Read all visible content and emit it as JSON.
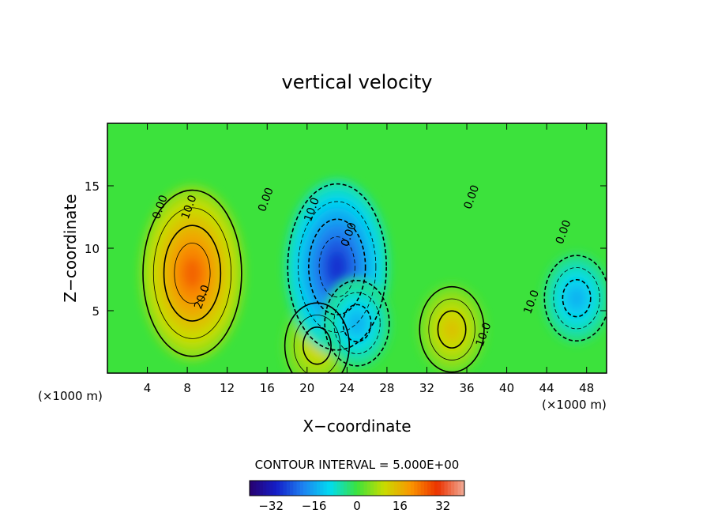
{
  "chart_data": {
    "type": "heatmap",
    "title": "vertical velocity",
    "xlabel": "X−coordinate",
    "ylabel": "Z−coordinate",
    "x_unit_left": "(×1000 m)",
    "x_unit_right": "(×1000 m)",
    "xlim": [
      0,
      50
    ],
    "ylim": [
      0,
      20
    ],
    "x_ticks": [
      4,
      8,
      12,
      16,
      20,
      24,
      28,
      32,
      36,
      40,
      44,
      48
    ],
    "y_ticks": [
      5,
      10,
      15
    ],
    "contour_interval_text": "CONTOUR INTERVAL = 5.000E+00",
    "contour_labels": [
      {
        "text": "0.00",
        "x": 5.6,
        "y": 13.2
      },
      {
        "text": "10.0",
        "x": 8.5,
        "y": 13.2
      },
      {
        "text": "20.0",
        "x": 9.8,
        "y": 6.0
      },
      {
        "text": "0.00",
        "x": 16.2,
        "y": 13.8
      },
      {
        "text": "10.0",
        "x": 20.8,
        "y": 13.0
      },
      {
        "text": "0.00",
        "x": 24.5,
        "y": 11.0
      },
      {
        "text": "0.00",
        "x": 36.8,
        "y": 14.0
      },
      {
        "text": "10.0",
        "x": 38.0,
        "y": 3.0
      },
      {
        "text": "10.0",
        "x": 42.8,
        "y": 5.6
      },
      {
        "text": "0.00",
        "x": 46.0,
        "y": 11.2
      }
    ],
    "features": [
      {
        "kind": "updraft",
        "x": 8.5,
        "y": 8.0,
        "peak": 25
      },
      {
        "kind": "updraft",
        "x": 21.0,
        "y": 2.2,
        "peak": 12
      },
      {
        "kind": "updraft",
        "x": 34.5,
        "y": 3.5,
        "peak": 14
      },
      {
        "kind": "downdraft",
        "x": 23.0,
        "y": 8.5,
        "peak": -28
      },
      {
        "kind": "downdraft",
        "x": 25.0,
        "y": 4.0,
        "peak": -15
      },
      {
        "kind": "downdraft",
        "x": 47.0,
        "y": 6.0,
        "peak": -15
      }
    ],
    "colorbar": {
      "ticks": [
        -32,
        -16,
        0,
        16,
        32
      ],
      "tick_labels": [
        "−32",
        "−16",
        "0",
        "16",
        "32"
      ],
      "range": [
        -40,
        40
      ]
    }
  }
}
